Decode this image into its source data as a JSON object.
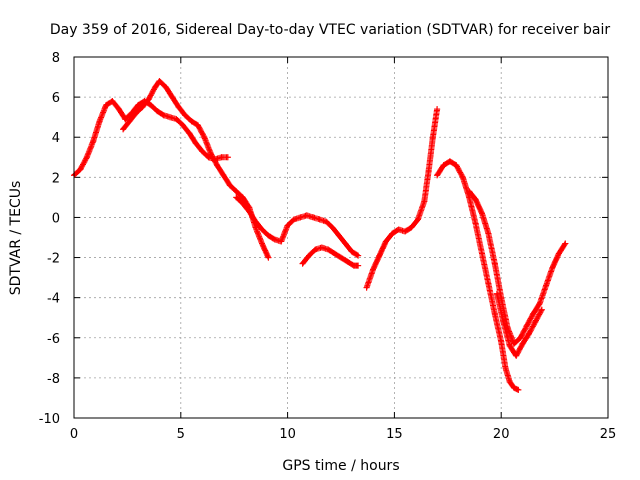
{
  "chart_data": {
    "type": "scatter",
    "title": "Day 359 of 2016, Sidereal Day-to-day VTEC variation (SDTVAR) for receiver bair",
    "xlabel": "GPS time / hours",
    "ylabel": "SDTVAR / TECUs",
    "xlim": [
      0,
      25
    ],
    "ylim": [
      -10,
      8
    ],
    "xticks": [
      0,
      5,
      10,
      15,
      20,
      25
    ],
    "yticks": [
      -10,
      -8,
      -6,
      -4,
      -2,
      0,
      2,
      4,
      6,
      8
    ],
    "grid": true,
    "marker": "+",
    "color": "#ff0000",
    "series": [
      {
        "x": [
          0.0,
          0.3,
          0.6,
          0.9,
          1.2,
          1.5,
          1.8,
          2.1,
          2.4,
          2.7,
          3.0,
          3.3,
          3.6,
          3.9,
          4.2,
          4.5,
          4.8,
          5.1,
          5.4,
          5.7,
          6.0,
          6.3,
          6.6,
          6.9,
          7.2
        ],
        "y": [
          2.1,
          2.4,
          3.0,
          3.8,
          4.8,
          5.6,
          5.8,
          5.4,
          4.9,
          5.2,
          5.6,
          5.8,
          5.6,
          5.3,
          5.1,
          5.0,
          4.9,
          4.6,
          4.2,
          3.7,
          3.3,
          3.0,
          2.9,
          3.0,
          3.0
        ]
      },
      {
        "x": [
          2.3,
          2.6,
          2.9,
          3.2,
          3.5,
          3.8,
          4.0,
          4.3,
          4.6,
          4.9,
          5.2,
          5.5,
          5.8,
          6.1,
          6.4,
          6.7,
          7.0,
          7.3,
          7.6,
          7.9,
          8.2,
          8.5,
          8.8,
          9.1
        ],
        "y": [
          4.4,
          4.8,
          5.2,
          5.5,
          5.9,
          6.5,
          6.8,
          6.5,
          6.0,
          5.5,
          5.1,
          4.8,
          4.6,
          4.0,
          3.2,
          2.6,
          2.1,
          1.6,
          1.3,
          1.0,
          0.5,
          -0.5,
          -1.3,
          -2.0
        ]
      },
      {
        "x": [
          7.6,
          7.9,
          8.2,
          8.5,
          8.8,
          9.1,
          9.4,
          9.7,
          10.0,
          10.3,
          10.6,
          10.9,
          11.2,
          11.5,
          11.8,
          12.1,
          12.4,
          12.7,
          13.0,
          13.3
        ],
        "y": [
          1.0,
          0.7,
          0.3,
          -0.2,
          -0.6,
          -0.9,
          -1.1,
          -1.2,
          -0.4,
          -0.1,
          0.0,
          0.1,
          0.0,
          -0.1,
          -0.2,
          -0.5,
          -0.9,
          -1.3,
          -1.7,
          -1.9
        ]
      },
      {
        "x": [
          10.7,
          11.0,
          11.3,
          11.6,
          11.9,
          12.2,
          12.5,
          12.8,
          13.1,
          13.3
        ],
        "y": [
          -2.3,
          -1.9,
          -1.6,
          -1.5,
          -1.6,
          -1.8,
          -2.0,
          -2.2,
          -2.4,
          -2.4
        ]
      },
      {
        "x": [
          13.7,
          14.0,
          14.3,
          14.6,
          14.9,
          15.2,
          15.5,
          15.8,
          16.1,
          16.4,
          16.6,
          16.8,
          17.0
        ],
        "y": [
          -3.5,
          -2.6,
          -1.9,
          -1.2,
          -0.8,
          -0.6,
          -0.7,
          -0.5,
          -0.1,
          0.8,
          2.3,
          4.0,
          5.4
        ]
      },
      {
        "x": [
          17.0,
          17.3,
          17.6,
          17.9,
          18.2,
          18.5,
          18.8,
          19.1,
          19.4,
          19.7,
          20.0,
          20.2,
          20.4,
          20.6,
          20.8
        ],
        "y": [
          2.1,
          2.6,
          2.8,
          2.6,
          2.0,
          1.0,
          -0.3,
          -1.8,
          -3.3,
          -4.8,
          -6.2,
          -7.5,
          -8.2,
          -8.5,
          -8.6
        ]
      },
      {
        "x": [
          18.5,
          18.8,
          19.1,
          19.4,
          19.7,
          20.0,
          20.3,
          20.6,
          20.9,
          21.2,
          21.5,
          21.8,
          22.1,
          22.4,
          22.7,
          23.0
        ],
        "y": [
          1.3,
          0.9,
          0.2,
          -0.8,
          -2.3,
          -4.0,
          -5.5,
          -6.3,
          -6.0,
          -5.4,
          -4.8,
          -4.3,
          -3.4,
          -2.5,
          -1.8,
          -1.3
        ]
      },
      {
        "x": [
          19.8,
          20.1,
          20.4,
          20.7,
          21.0,
          21.3,
          21.6,
          21.9
        ],
        "y": [
          -3.8,
          -5.2,
          -6.4,
          -6.9,
          -6.3,
          -5.8,
          -5.2,
          -4.6
        ]
      }
    ]
  }
}
